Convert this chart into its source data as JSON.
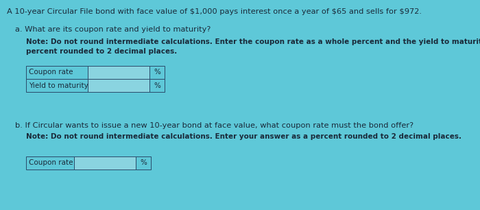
{
  "background_color": "#5ec8d8",
  "title_text": "A 10-year Circular File bond with face value of $1,000 pays interest once a year of $65 and sells for $972.",
  "title_fontsize": 8.2,
  "part_a_header": "a. What are its coupon rate and yield to maturity?",
  "part_a_note_line1": "Note: Do not round intermediate calculations. Enter the coupon rate as a whole percent and the yield to maturity as a",
  "part_a_note_line2": "percent rounded to 2 decimal places.",
  "note_fontsize": 7.5,
  "part_b_header": "b. If Circular wants to issue a new 10-year bond at face value, what coupon rate must the bond offer?",
  "part_b_note": "Note: Do not round intermediate calculations. Enter your answer as a percent rounded to 2 decimal places.",
  "table_a_rows": [
    "Coupon rate",
    "Yield to maturity"
  ],
  "table_b_rows": [
    "Coupon rate"
  ],
  "table_fontsize": 7.5,
  "percent_sign": "%",
  "table_border_color": "#2a4a6a",
  "table_label_bg": "#5ec8d8",
  "table_input_bg": "#8ad4e0",
  "table_pct_bg": "#5ec8d8",
  "text_color": "#1a2a3a"
}
